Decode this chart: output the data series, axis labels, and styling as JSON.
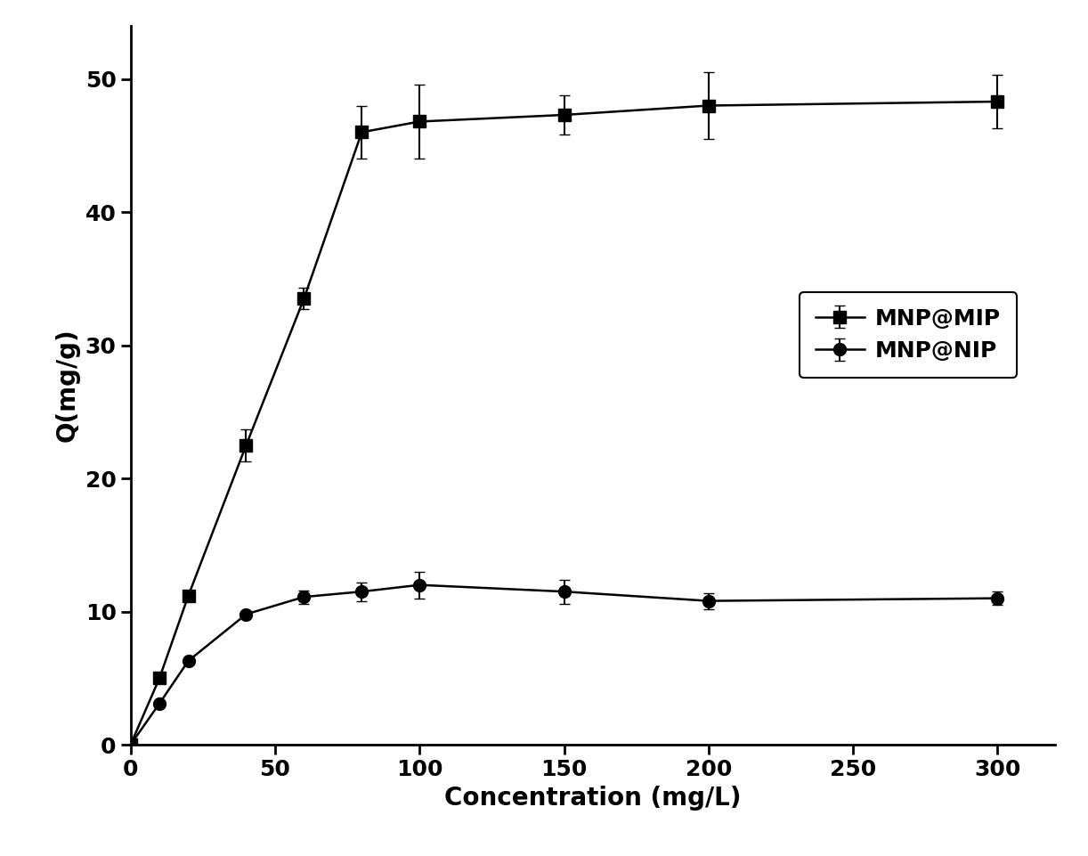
{
  "mip_x": [
    0,
    10,
    20,
    40,
    60,
    80,
    100,
    150,
    200,
    300
  ],
  "mip_y": [
    0,
    5.0,
    11.2,
    22.5,
    33.5,
    46.0,
    46.8,
    47.3,
    48.0,
    48.3
  ],
  "mip_yerr": [
    0,
    0,
    0,
    1.2,
    0.8,
    2.0,
    2.8,
    1.5,
    2.5,
    2.0
  ],
  "nip_x": [
    0,
    10,
    20,
    40,
    60,
    80,
    100,
    150,
    200,
    300
  ],
  "nip_y": [
    0,
    3.1,
    6.3,
    9.8,
    11.1,
    11.5,
    12.0,
    11.5,
    10.8,
    11.0
  ],
  "nip_yerr": [
    0,
    0,
    0,
    0,
    0.5,
    0.7,
    1.0,
    0.9,
    0.6,
    0.5
  ],
  "xlabel": "Concentration (mg/L)",
  "ylabel": "Q(mg/g)",
  "xlim": [
    0,
    320
  ],
  "ylim": [
    0,
    54
  ],
  "xticks": [
    0,
    50,
    100,
    150,
    200,
    250,
    300
  ],
  "yticks": [
    0,
    10,
    20,
    30,
    40,
    50
  ],
  "legend_mip": "MNP@MIP",
  "legend_nip": "MNP@NIP",
  "line_color": "#000000",
  "marker_mip": "s",
  "marker_nip": "o",
  "markersize": 10,
  "linewidth": 1.8,
  "capsize": 4,
  "elinewidth": 1.5,
  "label_fontsize": 20,
  "tick_fontsize": 18,
  "legend_fontsize": 18
}
